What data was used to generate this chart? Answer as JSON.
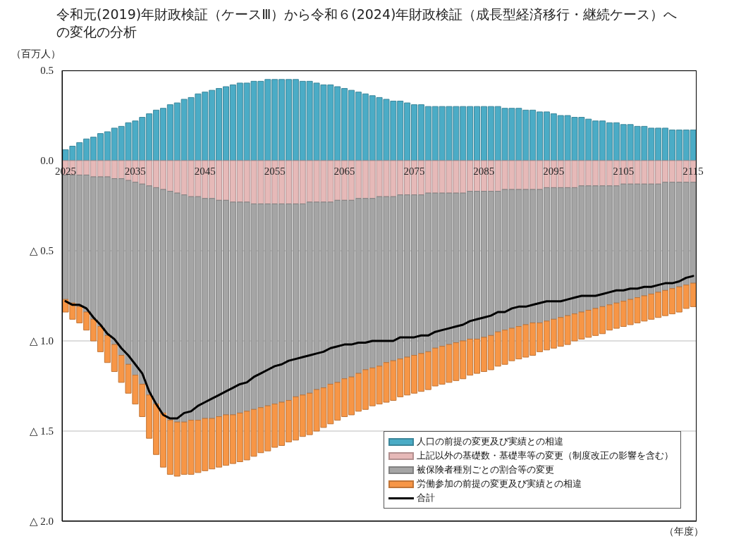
{
  "chart_data": {
    "type": "bar",
    "stacked": true,
    "title": "令和元(2019)年財政検証（ケースⅢ）から令和６(2024)年財政検証（成長型経済移行・継続ケース）への変化の分析",
    "xlabel": "（年度）",
    "ylabel": "（百万人）",
    "x": [
      2025,
      2026,
      2027,
      2028,
      2029,
      2030,
      2031,
      2032,
      2033,
      2034,
      2035,
      2036,
      2037,
      2038,
      2039,
      2040,
      2041,
      2042,
      2043,
      2044,
      2045,
      2046,
      2047,
      2048,
      2049,
      2050,
      2051,
      2052,
      2053,
      2054,
      2055,
      2056,
      2057,
      2058,
      2059,
      2060,
      2061,
      2062,
      2063,
      2064,
      2065,
      2066,
      2067,
      2068,
      2069,
      2070,
      2071,
      2072,
      2073,
      2074,
      2075,
      2076,
      2077,
      2078,
      2079,
      2080,
      2081,
      2082,
      2083,
      2084,
      2085,
      2086,
      2087,
      2088,
      2089,
      2090,
      2091,
      2092,
      2093,
      2094,
      2095,
      2096,
      2097,
      2098,
      2099,
      2100,
      2101,
      2102,
      2103,
      2104,
      2105,
      2106,
      2107,
      2108,
      2109,
      2110,
      2111,
      2112,
      2113,
      2114,
      2115
    ],
    "xlim": [
      2024.5,
      2115.5
    ],
    "xticks": [
      2025,
      2035,
      2045,
      2055,
      2065,
      2075,
      2085,
      2095,
      2105,
      2115
    ],
    "ylim": [
      -2,
      0.5
    ],
    "yticks": [
      {
        "value": 0.5,
        "label": "0.5"
      },
      {
        "value": 0,
        "label": "0.0"
      },
      {
        "value": -0.5,
        "label": "△ 0.5"
      },
      {
        "value": -1,
        "label": "△ 1.0"
      },
      {
        "value": -1.5,
        "label": "△ 1.5"
      },
      {
        "value": -2,
        "label": "△ 2.0"
      }
    ],
    "grid": "y",
    "legend": "bottom right",
    "series": [
      {
        "name": "人口の前提の変更及び実績との相違",
        "color": "#4bacc6",
        "values": [
          0.06,
          0.08,
          0.1,
          0.12,
          0.13,
          0.15,
          0.16,
          0.18,
          0.19,
          0.21,
          0.22,
          0.24,
          0.26,
          0.28,
          0.29,
          0.31,
          0.32,
          0.34,
          0.35,
          0.37,
          0.38,
          0.39,
          0.4,
          0.41,
          0.42,
          0.43,
          0.43,
          0.44,
          0.44,
          0.45,
          0.45,
          0.45,
          0.45,
          0.45,
          0.44,
          0.44,
          0.43,
          0.42,
          0.42,
          0.41,
          0.4,
          0.39,
          0.38,
          0.37,
          0.36,
          0.35,
          0.34,
          0.33,
          0.33,
          0.32,
          0.31,
          0.31,
          0.3,
          0.3,
          0.3,
          0.3,
          0.3,
          0.3,
          0.3,
          0.3,
          0.3,
          0.3,
          0.3,
          0.29,
          0.29,
          0.29,
          0.28,
          0.28,
          0.27,
          0.27,
          0.26,
          0.25,
          0.25,
          0.24,
          0.24,
          0.23,
          0.22,
          0.22,
          0.21,
          0.21,
          0.2,
          0.2,
          0.19,
          0.19,
          0.18,
          0.18,
          0.18,
          0.17,
          0.17,
          0.17,
          0.17
        ]
      },
      {
        "name": "上記以外の基礎数・基礎率等の変更（制度改正の影響を含む）",
        "color": "#e6b9b8",
        "values": [
          -0.08,
          -0.08,
          -0.08,
          -0.08,
          -0.09,
          -0.09,
          -0.09,
          -0.1,
          -0.1,
          -0.11,
          -0.12,
          -0.13,
          -0.14,
          -0.15,
          -0.16,
          -0.17,
          -0.18,
          -0.19,
          -0.2,
          -0.2,
          -0.21,
          -0.21,
          -0.22,
          -0.22,
          -0.23,
          -0.23,
          -0.23,
          -0.24,
          -0.24,
          -0.24,
          -0.24,
          -0.24,
          -0.24,
          -0.24,
          -0.24,
          -0.23,
          -0.23,
          -0.23,
          -0.23,
          -0.22,
          -0.22,
          -0.22,
          -0.21,
          -0.21,
          -0.21,
          -0.2,
          -0.2,
          -0.2,
          -0.19,
          -0.19,
          -0.19,
          -0.19,
          -0.18,
          -0.18,
          -0.18,
          -0.18,
          -0.18,
          -0.18,
          -0.17,
          -0.17,
          -0.17,
          -0.17,
          -0.17,
          -0.16,
          -0.16,
          -0.16,
          -0.16,
          -0.16,
          -0.16,
          -0.15,
          -0.15,
          -0.15,
          -0.15,
          -0.15,
          -0.14,
          -0.14,
          -0.14,
          -0.14,
          -0.14,
          -0.14,
          -0.13,
          -0.13,
          -0.13,
          -0.13,
          -0.13,
          -0.13,
          -0.12,
          -0.12,
          -0.12,
          -0.12,
          -0.12
        ]
      },
      {
        "name": "被保険者種別ごとの割合等の変更",
        "color": "#a5a5a5",
        "values": [
          -0.69,
          -0.71,
          -0.73,
          -0.76,
          -0.79,
          -0.83,
          -0.88,
          -0.92,
          -0.98,
          -1.02,
          -1.07,
          -1.11,
          -1.16,
          -1.2,
          -1.24,
          -1.27,
          -1.27,
          -1.26,
          -1.24,
          -1.24,
          -1.22,
          -1.22,
          -1.2,
          -1.19,
          -1.18,
          -1.17,
          -1.16,
          -1.14,
          -1.13,
          -1.12,
          -1.11,
          -1.1,
          -1.09,
          -1.07,
          -1.06,
          -1.06,
          -1.04,
          -1.03,
          -1.01,
          -1.01,
          -0.99,
          -0.98,
          -0.97,
          -0.95,
          -0.94,
          -0.94,
          -0.92,
          -0.91,
          -0.91,
          -0.9,
          -0.89,
          -0.88,
          -0.88,
          -0.86,
          -0.85,
          -0.84,
          -0.83,
          -0.82,
          -0.82,
          -0.82,
          -0.81,
          -0.8,
          -0.78,
          -0.78,
          -0.77,
          -0.76,
          -0.75,
          -0.74,
          -0.74,
          -0.74,
          -0.73,
          -0.72,
          -0.71,
          -0.7,
          -0.7,
          -0.69,
          -0.68,
          -0.67,
          -0.66,
          -0.65,
          -0.65,
          -0.64,
          -0.63,
          -0.62,
          -0.61,
          -0.6,
          -0.6,
          -0.59,
          -0.58,
          -0.57,
          -0.56
        ]
      },
      {
        "name": "労働参加の前提の変更及び実績との相違",
        "color": "#f79646",
        "values": [
          -0.07,
          -0.09,
          -0.09,
          -0.1,
          -0.12,
          -0.14,
          -0.15,
          -0.15,
          -0.15,
          -0.16,
          -0.16,
          -0.18,
          -0.24,
          -0.28,
          -0.3,
          -0.3,
          -0.3,
          -0.29,
          -0.3,
          -0.29,
          -0.29,
          -0.28,
          -0.28,
          -0.28,
          -0.27,
          -0.27,
          -0.27,
          -0.26,
          -0.25,
          -0.25,
          -0.24,
          -0.24,
          -0.23,
          -0.24,
          -0.23,
          -0.23,
          -0.23,
          -0.22,
          -0.22,
          -0.21,
          -0.21,
          -0.21,
          -0.21,
          -0.22,
          -0.21,
          -0.21,
          -0.22,
          -0.22,
          -0.21,
          -0.21,
          -0.21,
          -0.21,
          -0.21,
          -0.21,
          -0.21,
          -0.21,
          -0.21,
          -0.21,
          -0.2,
          -0.19,
          -0.19,
          -0.19,
          -0.19,
          -0.19,
          -0.18,
          -0.18,
          -0.18,
          -0.18,
          -0.16,
          -0.16,
          -0.16,
          -0.16,
          -0.16,
          -0.15,
          -0.15,
          -0.15,
          -0.15,
          -0.15,
          -0.14,
          -0.14,
          -0.14,
          -0.14,
          -0.14,
          -0.14,
          -0.14,
          -0.14,
          -0.14,
          -0.14,
          -0.14,
          -0.13,
          -0.13
        ]
      },
      {
        "name": "合計",
        "type": "line",
        "color": "#000000",
        "values": [
          -0.78,
          -0.8,
          -0.8,
          -0.82,
          -0.87,
          -0.91,
          -0.96,
          -0.99,
          -1.04,
          -1.08,
          -1.13,
          -1.18,
          -1.28,
          -1.35,
          -1.41,
          -1.43,
          -1.43,
          -1.4,
          -1.39,
          -1.36,
          -1.34,
          -1.32,
          -1.3,
          -1.28,
          -1.26,
          -1.24,
          -1.23,
          -1.2,
          -1.18,
          -1.16,
          -1.14,
          -1.13,
          -1.11,
          -1.1,
          -1.09,
          -1.08,
          -1.07,
          -1.06,
          -1.04,
          -1.03,
          -1.02,
          -1.02,
          -1.01,
          -1.01,
          -1,
          -1,
          -1,
          -1,
          -0.98,
          -0.98,
          -0.98,
          -0.97,
          -0.97,
          -0.95,
          -0.94,
          -0.93,
          -0.92,
          -0.91,
          -0.89,
          -0.88,
          -0.87,
          -0.86,
          -0.84,
          -0.84,
          -0.82,
          -0.81,
          -0.81,
          -0.8,
          -0.79,
          -0.78,
          -0.78,
          -0.78,
          -0.77,
          -0.76,
          -0.75,
          -0.75,
          -0.75,
          -0.74,
          -0.73,
          -0.72,
          -0.72,
          -0.71,
          -0.71,
          -0.7,
          -0.7,
          -0.69,
          -0.68,
          -0.68,
          -0.67,
          -0.65,
          -0.64
        ]
      }
    ]
  }
}
